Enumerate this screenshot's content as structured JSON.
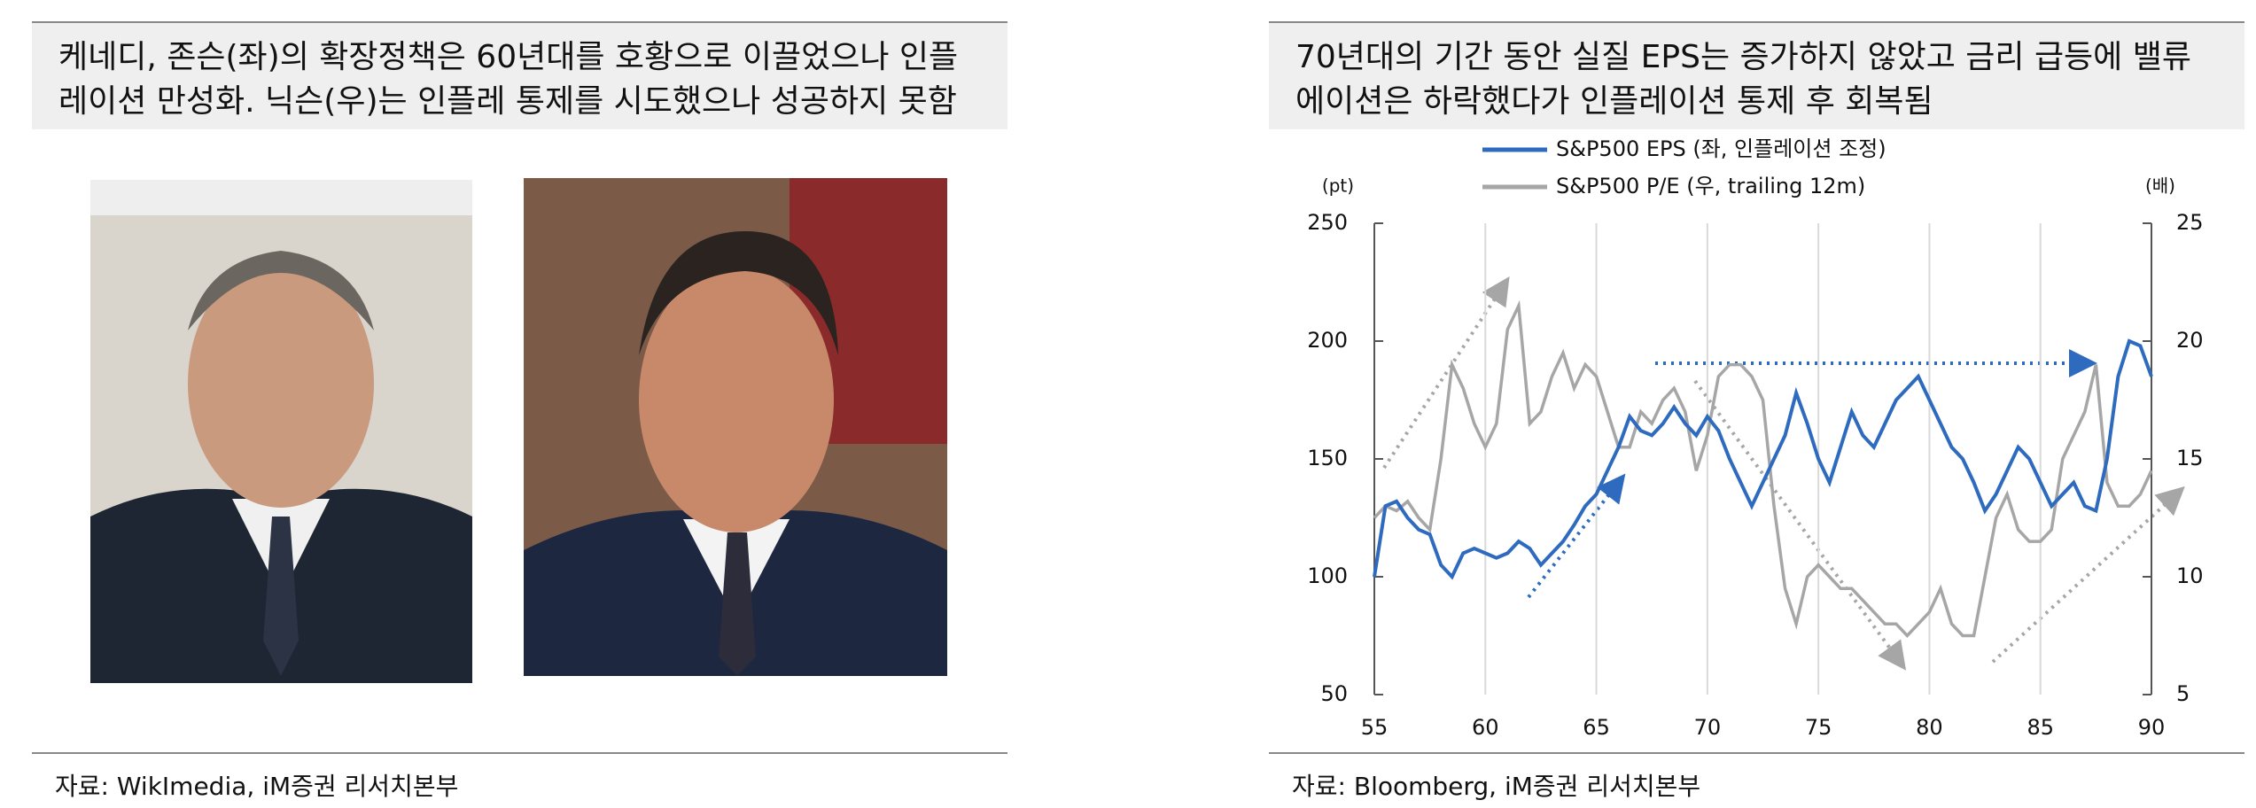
{
  "left": {
    "title_lines": [
      "케네디, 존슨(좌)의 확장정책은 60년대를 호황으로 이끌었으나 인플",
      "레이션 만성화. 닉슨(우)는 인플레 통제를 시도했으나 성공하지 못함"
    ],
    "source": "자료: WikImedia, iM증권 리서치본부"
  },
  "right": {
    "title_lines": [
      "70년대의 기간 동안 실질 EPS는 증가하지 않았고 금리 급등에 밸류",
      "에이션은 하락했다가 인플레이션 통제 후 회복됨"
    ],
    "source": "자료: Bloomberg, iM증권 리서치본부"
  },
  "chart_data": {
    "type": "line",
    "y_unit": "(pt)",
    "y2_unit": "(배)",
    "x": [
      55,
      55.5,
      56,
      56.5,
      57,
      57.5,
      58,
      58.5,
      59,
      59.5,
      60,
      60.5,
      61,
      61.5,
      62,
      62.5,
      63,
      63.5,
      64,
      64.5,
      65,
      65.5,
      66,
      66.5,
      67,
      67.5,
      68,
      68.5,
      69,
      69.5,
      70,
      70.5,
      71,
      71.5,
      72,
      72.5,
      73,
      73.5,
      74,
      74.5,
      75,
      75.5,
      76,
      76.5,
      77,
      77.5,
      78,
      78.5,
      79,
      79.5,
      80,
      80.5,
      81,
      81.5,
      82,
      82.5,
      83,
      83.5,
      84,
      84.5,
      85,
      85.5,
      86,
      86.5,
      87,
      87.5,
      88,
      88.5,
      89,
      89.5,
      90
    ],
    "xlim": [
      55,
      90
    ],
    "xticks": [
      55,
      60,
      65,
      70,
      75,
      80,
      85,
      90
    ],
    "ylim": [
      50,
      250
    ],
    "yticks": [
      50,
      100,
      150,
      200,
      250
    ],
    "y2lim": [
      5,
      25
    ],
    "y2ticks": [
      5,
      10,
      15,
      20,
      25
    ],
    "grid_x": true,
    "series": [
      {
        "name": "S&P500 EPS (좌, 인플레이션 조정)",
        "color": "#2e6bbf",
        "values": [
          100,
          130,
          132,
          125,
          120,
          118,
          105,
          100,
          110,
          112,
          110,
          108,
          110,
          115,
          112,
          105,
          110,
          115,
          122,
          130,
          135,
          145,
          155,
          168,
          162,
          160,
          165,
          172,
          165,
          160,
          168,
          162,
          150,
          140,
          130,
          140,
          150,
          160,
          178,
          165,
          150,
          140,
          155,
          170,
          160,
          155,
          165,
          175,
          180,
          185,
          175,
          165,
          155,
          150,
          140,
          128,
          135,
          145,
          155,
          150,
          140,
          130,
          135,
          140,
          130,
          128,
          150,
          185,
          200,
          198,
          185
        ]
      },
      {
        "name": "S&P500 P/E (우, trailing 12m)",
        "color": "#a6a6a6",
        "axis": "y2",
        "values": [
          12.5,
          13,
          12.8,
          13.2,
          12.5,
          12,
          15,
          19,
          18,
          16.5,
          15.5,
          16.5,
          20.5,
          21.5,
          16.5,
          17,
          18.5,
          19.5,
          18,
          19,
          18.5,
          17,
          15.5,
          15.5,
          17,
          16.5,
          17.5,
          18,
          17,
          14.5,
          16,
          18.5,
          19,
          19,
          18.5,
          17.5,
          13,
          9.5,
          8,
          10,
          10.5,
          10,
          9.5,
          9.5,
          9,
          8.5,
          8,
          8,
          7.5,
          8,
          8.5,
          9.5,
          8,
          7.5,
          7.5,
          10,
          12.5,
          13.5,
          12,
          11.5,
          11.5,
          12,
          15,
          16,
          17,
          19,
          14,
          13,
          13,
          13.5,
          14.5
        ]
      }
    ]
  }
}
